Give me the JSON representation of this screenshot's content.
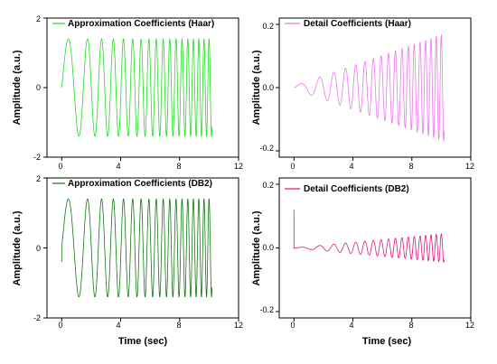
{
  "chart_data": [
    {
      "type": "line",
      "legend": "Approximation Coefficients (Haar)",
      "legend_position": "top-left",
      "ylabel": "Amplitude (a.u.)",
      "xlabel": "",
      "xlim": [
        -1,
        12
      ],
      "ylim": [
        -2,
        2
      ],
      "xticks": [
        "0",
        "4",
        "8",
        "12"
      ],
      "yticks": [
        "-2",
        "0",
        "2"
      ],
      "color": "#22dd22",
      "signal": {
        "t_start": 0,
        "t_end": 10.2,
        "amplitude_start": 1.4,
        "amplitude_end": 1.4,
        "freq_start": 0.5,
        "freq_end": 3.0,
        "amplitude_units": "a.u."
      }
    },
    {
      "type": "line",
      "legend": "Detail Coefficients (Haar)",
      "legend_position": "top-left",
      "ylabel": "Amplitude (a.u.)",
      "xlabel": "",
      "xlim": [
        -1,
        12
      ],
      "ylim": [
        -0.22,
        0.22
      ],
      "xticks": [
        "0",
        "4",
        "8",
        "12"
      ],
      "yticks": [
        "-0.2",
        "0.0",
        "0.2"
      ],
      "color": "#ee77ee",
      "signal": {
        "t_start": 0,
        "t_end": 10.2,
        "amplitude_start": 0.005,
        "amplitude_end": 0.17,
        "freq_start": 0.5,
        "freq_end": 3.0,
        "amplitude_units": "a.u."
      }
    },
    {
      "type": "line",
      "legend": "Approximation Coefficients (DB2)",
      "legend_position": "top-left",
      "ylabel": "Amplitude (a.u.)",
      "xlabel": "Time (sec)",
      "xlim": [
        -1,
        12
      ],
      "ylim": [
        -2,
        2
      ],
      "xticks": [
        "0",
        "4",
        "8",
        "12"
      ],
      "yticks": [
        "-2",
        "0",
        "2"
      ],
      "color": "#117711",
      "signal": {
        "t_start": 0,
        "t_end": 10.2,
        "amplitude_start": 1.4,
        "amplitude_end": 1.4,
        "freq_start": 0.5,
        "freq_end": 3.0,
        "amplitude_units": "a.u.",
        "initial_value": -0.4
      }
    },
    {
      "type": "line",
      "legend": "Detail Coefficients (DB2)",
      "legend_position": "top-left",
      "ylabel": "Amplitude (a.u.)",
      "xlabel": "Time (sec)",
      "xlim": [
        -1,
        12
      ],
      "ylim": [
        -0.22,
        0.22
      ],
      "xticks": [
        "0",
        "4",
        "8",
        "12"
      ],
      "yticks": [
        "-0.2",
        "0.0",
        "0.2"
      ],
      "color": "#e0157a",
      "signal": {
        "t_start": 0,
        "t_end": 10.2,
        "amplitude_start": 0.0,
        "amplitude_end": 0.045,
        "freq_start": 0.5,
        "freq_end": 3.0,
        "amplitude_units": "a.u.",
        "initial_spike": 0.12
      }
    }
  ]
}
